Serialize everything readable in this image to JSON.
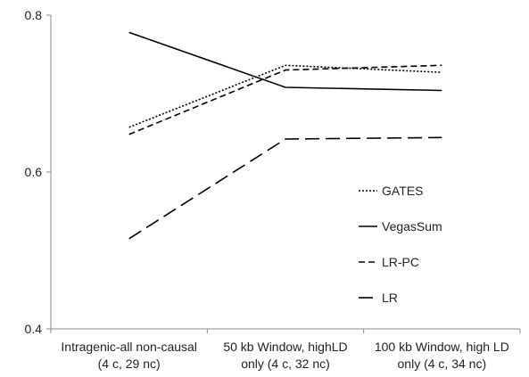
{
  "chart_data": {
    "type": "line",
    "categories": [
      [
        "Intragenic-all non-causal",
        "(4 c, 29 nc)"
      ],
      [
        "50 kb Window, highLD",
        "only (4 c, 32 nc)"
      ],
      [
        "100 kb Window, high LD",
        "only (4 c, 34 nc)"
      ]
    ],
    "ylim": [
      0.4,
      0.8
    ],
    "yticks": [
      0.4,
      0.6,
      0.8
    ],
    "ytick_labels": [
      "0.4",
      "0.6",
      "0.8"
    ],
    "grid": false,
    "legend_position": "right",
    "series": [
      {
        "name": "GATES",
        "values": [
          0.657,
          0.736,
          0.727
        ],
        "dash": "dotted"
      },
      {
        "name": "VegasSum",
        "values": [
          0.778,
          0.708,
          0.704
        ],
        "dash": "solid"
      },
      {
        "name": "LR-PC",
        "values": [
          0.648,
          0.73,
          0.736
        ],
        "dash": "short-dash"
      },
      {
        "name": "LR",
        "values": [
          0.515,
          0.642,
          0.644
        ],
        "dash": "long-dash"
      }
    ]
  }
}
